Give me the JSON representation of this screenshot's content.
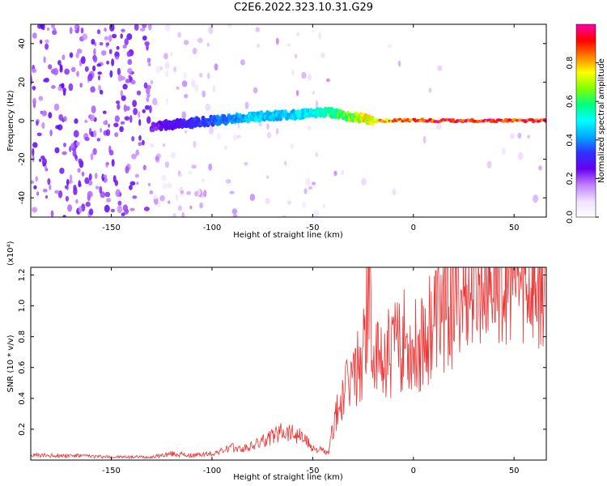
{
  "title": "C2E6.2022.323.10.31.G29",
  "colors": {
    "snr_line": "#ee3333",
    "colormap": [
      "#ffffff",
      "#f0e0ff",
      "#c080ff",
      "#6600ee",
      "#3030ff",
      "#00aaff",
      "#00ffff",
      "#00ff80",
      "#80ff00",
      "#ffff00",
      "#ff8000",
      "#ff0000",
      "#ff00aa"
    ]
  },
  "chart_data": [
    {
      "type": "heatmap",
      "title": "C2E6.2022.323.10.31.G29",
      "xlabel": "Height of straight line (km)",
      "ylabel": "Frequency (Hz)",
      "xlim": [
        -190,
        66
      ],
      "ylim": [
        -50,
        50
      ],
      "x_ticks": [
        -150,
        -100,
        -50,
        0,
        50
      ],
      "y_ticks": [
        -40,
        -20,
        0,
        20,
        40
      ],
      "colorbar": {
        "label": "Normalized spectral amplitude",
        "range": [
          0.0,
          1.0
        ],
        "ticks": [
          0.0,
          0.2,
          0.4,
          0.6,
          0.8
        ]
      },
      "signal_trace": {
        "x": [
          -130,
          -120,
          -110,
          -100,
          -90,
          -80,
          -70,
          -60,
          -50,
          -40,
          -30,
          -20,
          -10,
          0,
          10,
          20,
          30,
          40,
          50,
          60,
          66
        ],
        "frequency": [
          -3,
          -2,
          -1,
          0,
          1,
          2,
          2.5,
          3,
          4,
          4,
          2,
          0,
          0,
          0.5,
          0,
          0,
          0,
          0,
          0,
          0,
          0
        ],
        "amplitude": [
          0.25,
          0.3,
          0.35,
          0.4,
          0.45,
          0.5,
          0.5,
          0.5,
          0.55,
          0.65,
          0.75,
          0.85,
          0.9,
          0.95,
          1.0,
          1.0,
          1.0,
          1.0,
          1.0,
          1.0,
          1.0
        ]
      }
    },
    {
      "type": "line",
      "xlabel": "Height of straight line (km)",
      "ylabel": "SNR (10 * v/v)",
      "y_multiplier": "(x10⁴)",
      "xlim": [
        -190,
        66
      ],
      "ylim": [
        0,
        12500
      ],
      "x_ticks": [
        -150,
        -100,
        -50,
        0,
        50
      ],
      "y_ticks": [
        2000,
        4000,
        6000,
        8000,
        10000,
        12000
      ],
      "y_tick_labels": [
        "0.2",
        "0.4",
        "0.6",
        "0.8",
        "1.0",
        "1.2"
      ],
      "series": [
        {
          "x": [
            -190,
            -170,
            -150,
            -130,
            -120,
            -110,
            -100,
            -95,
            -90,
            -85,
            -80,
            -75,
            -70,
            -65,
            -60,
            -55,
            -50,
            -45,
            -42,
            -40,
            -35,
            -30,
            -25,
            -22,
            -20,
            -15,
            -10,
            -5,
            0,
            5,
            10,
            15,
            20,
            25,
            30,
            40,
            50,
            60,
            66
          ],
          "y": [
            300,
            300,
            200,
            200,
            400,
            300,
            400,
            600,
            800,
            700,
            900,
            1200,
            1500,
            2000,
            1800,
            1500,
            800,
            600,
            400,
            2200,
            4000,
            5500,
            6500,
            12000,
            6000,
            6500,
            7200,
            7800,
            7200,
            8200,
            9200,
            10000,
            10400,
            10800,
            11000,
            11600,
            11500,
            11200,
            11000
          ]
        }
      ]
    }
  ]
}
